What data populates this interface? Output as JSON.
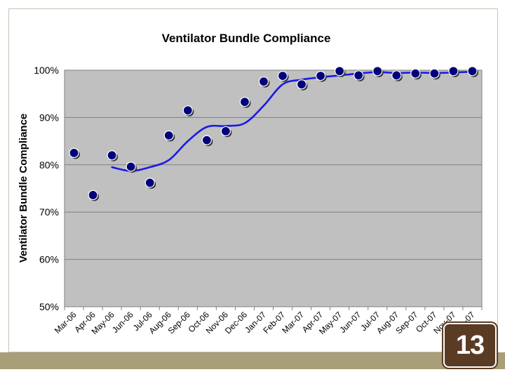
{
  "slide": {
    "page_number": "13"
  },
  "colors": {
    "plot_background": "#c0c0c0",
    "marker_fill": "#00007a",
    "marker_shadow": "#333333",
    "trend_line": "#1a1ae6",
    "footer_bar": "#a89e78",
    "badge": "#5a3b24"
  },
  "chart_data": {
    "type": "scatter",
    "title": "Ventilator Bundle Compliance",
    "xlabel": "",
    "ylabel": "Ventilator Bundle Compliance",
    "ylim": [
      50,
      100
    ],
    "y_ticks": [
      "100%",
      "90%",
      "80%",
      "70%",
      "60%",
      "50%"
    ],
    "y_tick_values": [
      100,
      90,
      80,
      70,
      60,
      50
    ],
    "grid": "horizontal",
    "legend": "none",
    "categories": [
      "Mar-06",
      "Apr-06",
      "May-06",
      "Jun-06",
      "Jul-06",
      "Aug-06",
      "Sep-06",
      "Oct-06",
      "Nov-06",
      "Dec-06",
      "Jan-07",
      "Feb-07",
      "Mar-07",
      "Apr-07",
      "May-07",
      "Jun-07",
      "Jul-07",
      "Aug-07",
      "Sep-07",
      "Oct-07",
      "Nov-07",
      "Dec-07"
    ],
    "series": [
      {
        "values": [
          82.5,
          73.6,
          82.0,
          79.6,
          76.2,
          86.2,
          91.5,
          85.2,
          87.1,
          93.3,
          97.6,
          98.8,
          97.0,
          98.8,
          99.8,
          98.9,
          99.8,
          98.9,
          99.3,
          99.3,
          99.8,
          99.8
        ]
      }
    ],
    "trend_line": {
      "type": "smoothed",
      "points": [
        [
          2,
          79.5
        ],
        [
          3,
          78.7
        ],
        [
          4,
          79.5
        ],
        [
          5,
          81.0
        ],
        [
          6,
          85.0
        ],
        [
          7,
          88.0
        ],
        [
          8,
          88.2
        ],
        [
          9,
          88.8
        ],
        [
          10,
          92.5
        ],
        [
          11,
          97.0
        ],
        [
          12,
          98.0
        ],
        [
          13,
          98.5
        ],
        [
          14,
          98.9
        ],
        [
          15,
          99.3
        ],
        [
          16,
          99.6
        ],
        [
          17,
          99.4
        ],
        [
          18,
          99.5
        ],
        [
          19,
          99.4
        ],
        [
          20,
          99.5
        ],
        [
          21,
          99.7
        ]
      ]
    }
  }
}
